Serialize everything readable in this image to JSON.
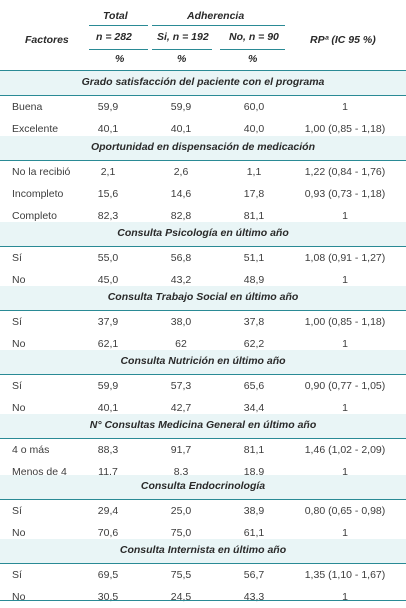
{
  "header": {
    "factores": "Factores",
    "total": "Total",
    "adherencia": "Adherencia",
    "n_total": "n = 282",
    "n_si": "Si, n = 192",
    "n_no": "No, n = 90",
    "rp": "RPª (IC 95 %)",
    "pct": "%"
  },
  "sections": [
    {
      "title": "Grado satisfacción del paciente con el programa",
      "rows": [
        {
          "label": "Buena",
          "total": "59,9",
          "si": "59,9",
          "no": "60,0",
          "rp": "1"
        },
        {
          "label": "Excelente",
          "total": "40,1",
          "si": "40,1",
          "no": "40,0",
          "rp": "1,00 (0,85 - 1,18)"
        }
      ]
    },
    {
      "title": "Oportunidad en dispensación de medicación",
      "rows": [
        {
          "label": "No la recibió",
          "total": "2,1",
          "si": "2,6",
          "no": "1,1",
          "rp": "1,22 (0,84 - 1,76)"
        },
        {
          "label": "Incompleto",
          "total": "15,6",
          "si": "14,6",
          "no": "17,8",
          "rp": "0,93 (0,73 - 1,18)"
        },
        {
          "label": "Completo",
          "total": "82,3",
          "si": "82,8",
          "no": "81,1",
          "rp": "1"
        }
      ]
    },
    {
      "title": "Consulta Psicología en último año",
      "rows": [
        {
          "label": "Sí",
          "total": "55,0",
          "si": "56,8",
          "no": "51,1",
          "rp": "1,08 (0,91 - 1,27)"
        },
        {
          "label": "No",
          "total": "45,0",
          "si": "43,2",
          "no": "48,9",
          "rp": "1"
        }
      ]
    },
    {
      "title": "Consulta Trabajo Social en último año",
      "rows": [
        {
          "label": "Sí",
          "total": "37,9",
          "si": "38,0",
          "no": "37,8",
          "rp": "1,00 (0,85 - 1,18)"
        },
        {
          "label": "No",
          "total": "62,1",
          "si": "62",
          "no": "62,2",
          "rp": "1"
        }
      ]
    },
    {
      "title": "Consulta Nutrición en último año",
      "rows": [
        {
          "label": "Sí",
          "total": "59,9",
          "si": "57,3",
          "no": "65,6",
          "rp": "0,90 (0,77 - 1,05)"
        },
        {
          "label": "No",
          "total": "40,1",
          "si": "42,7",
          "no": "34,4",
          "rp": "1"
        }
      ]
    },
    {
      "title": "N° Consultas Medicina General en último año",
      "rows": [
        {
          "label": "4 o más",
          "total": "88,3",
          "si": "91,7",
          "no": "81,1",
          "rp": "1,46 (1,02 - 2,09)"
        },
        {
          "label": "Menos de 4",
          "total": "11,7",
          "si": "8,3",
          "no": "18,9",
          "rp": "1"
        }
      ]
    },
    {
      "title": "Consulta Endocrinología",
      "rows": [
        {
          "label": "Sí",
          "total": "29,4",
          "si": "25,0",
          "no": "38,9",
          "rp": "0,80 (0,65 - 0,98)"
        },
        {
          "label": "No",
          "total": "70,6",
          "si": "75,0",
          "no": "61,1",
          "rp": "1"
        }
      ]
    },
    {
      "title": "Consulta Internista en último año",
      "rows": [
        {
          "label": "Sí",
          "total": "69,5",
          "si": "75,5",
          "no": "56,7",
          "rp": "1,35 (1,10 - 1,67)"
        },
        {
          "label": "No",
          "total": "30,5",
          "si": "24,5",
          "no": "43,3",
          "rp": "1"
        }
      ]
    }
  ]
}
